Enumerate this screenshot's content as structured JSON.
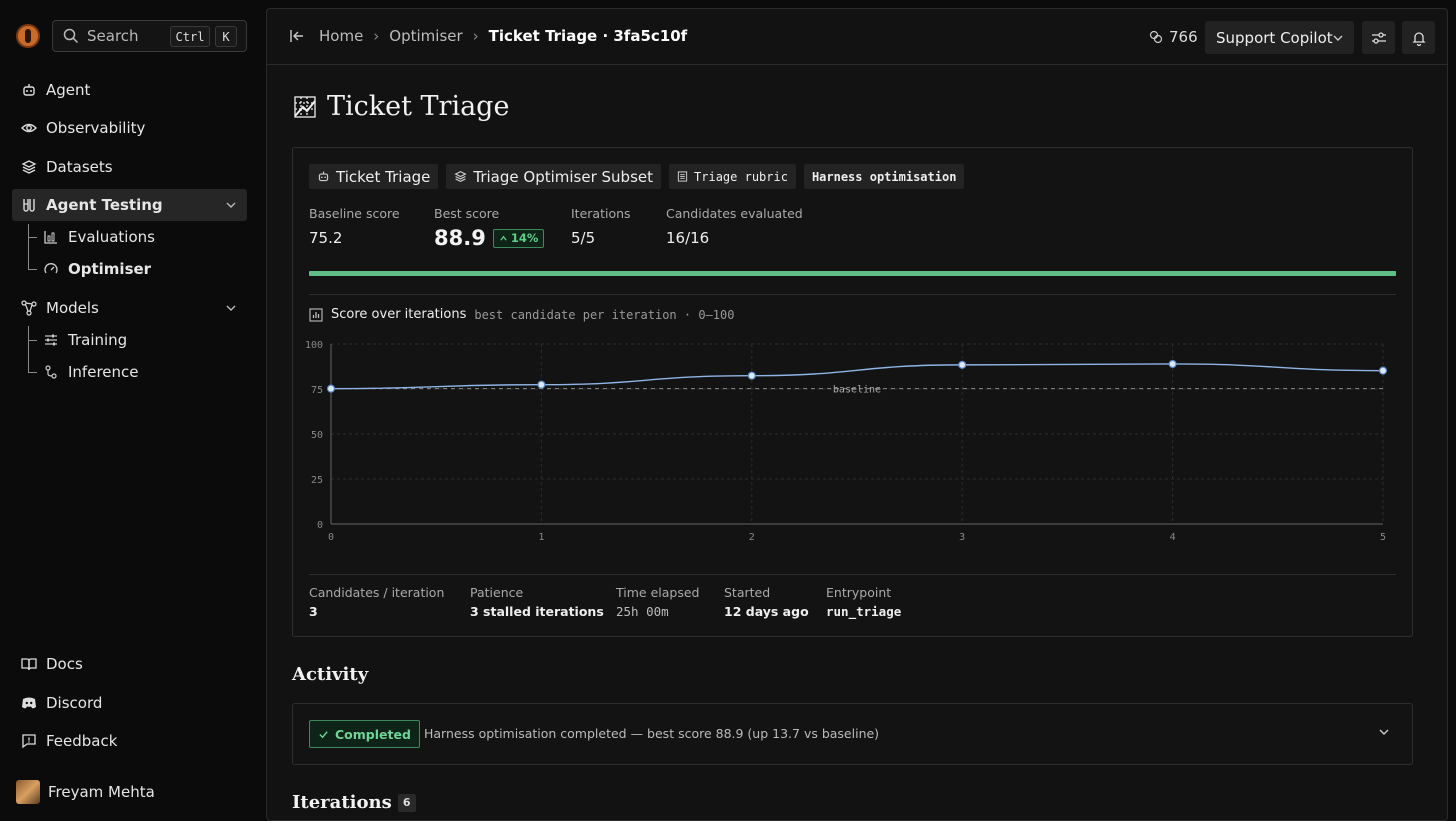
{
  "sidebar": {
    "search": {
      "label": "Search",
      "kbd1": "Ctrl",
      "kbd2": "K"
    },
    "nav": {
      "agent": "Agent",
      "observability": "Observability",
      "datasets": "Datasets",
      "agent_testing": "Agent Testing",
      "evaluations": "Evaluations",
      "optimiser": "Optimiser",
      "models": "Models",
      "training": "Training",
      "inference": "Inference"
    },
    "footer": {
      "docs": "Docs",
      "discord": "Discord",
      "feedback": "Feedback"
    },
    "user": {
      "name": "Freyam Mehta"
    }
  },
  "header": {
    "breadcrumb": {
      "home": "Home",
      "optimiser": "Optimiser",
      "current": "Ticket Triage · 3fa5c10f"
    },
    "credits": "766",
    "project": "Support Copilot"
  },
  "page": {
    "title": "Ticket Triage",
    "chips": {
      "agent": "Ticket Triage",
      "dataset": "Triage Optimiser Subset",
      "rubric": "Triage rubric",
      "mode": "Harness optimisation"
    },
    "stats": {
      "baseline_label": "Baseline score",
      "baseline_value": "75.2",
      "best_label": "Best score",
      "best_value": "88.9",
      "best_delta": "14%",
      "iterations_label": "Iterations",
      "iterations_value": "5/5",
      "candidates_label": "Candidates evaluated",
      "candidates_value": "16/16"
    },
    "progress": 1.0,
    "chart_header": {
      "title": "Score over iterations",
      "subtitle": "best candidate per iteration · 0–100"
    },
    "meta": {
      "cands_label": "Candidates / iteration",
      "cands_value": "3",
      "patience_label": "Patience",
      "patience_value": "3 stalled iterations",
      "elapsed_label": "Time elapsed",
      "elapsed_value": "25h 00m",
      "started_label": "Started",
      "started_value": "12 days ago",
      "entry_label": "Entrypoint",
      "entry_value": "run_triage"
    }
  },
  "activity": {
    "heading": "Activity",
    "status": "Completed",
    "text": "Harness optimisation completed — best score 88.9 (up 13.7 vs baseline)"
  },
  "iterations": {
    "heading": "Iterations",
    "count": "6"
  },
  "colors": {
    "accent_green": "#5fbf86",
    "line": "#8fb4e6"
  },
  "chart_data": {
    "type": "line",
    "x": [
      0,
      1,
      2,
      3,
      4,
      5
    ],
    "series": [
      {
        "values": [
          75.2,
          77.4,
          82.4,
          88.4,
          88.9,
          85.2
        ]
      }
    ],
    "baseline": 75.2,
    "baseline_label": "baseline",
    "ylim": [
      0,
      100
    ],
    "yticks": [
      0,
      25,
      50,
      75,
      100
    ],
    "xticks": [
      0,
      1,
      2,
      3,
      4,
      5
    ],
    "grid": true
  }
}
